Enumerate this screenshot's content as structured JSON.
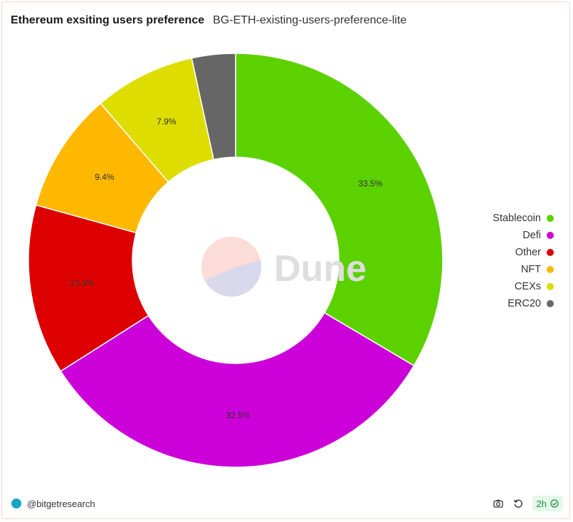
{
  "header": {
    "title": "Ethereum exsiting users preference",
    "subtitle": "BG-ETH-existing-users-preference-lite"
  },
  "chart_data": {
    "type": "pie",
    "donut": true,
    "categories": [
      "Stablecoin",
      "Defi",
      "Other",
      "NFT",
      "CEXs",
      "ERC20"
    ],
    "values": [
      33.5,
      32.5,
      13.3,
      9.4,
      7.9,
      3.4
    ],
    "labels": [
      "33.5%",
      "32.5%",
      "13.3%",
      "9.4%",
      "7.9%",
      ""
    ],
    "colors": [
      "#5cd100",
      "#cc00d8",
      "#dd0000",
      "#ffb800",
      "#dedd00",
      "#666666"
    ],
    "legend_position": "right"
  },
  "watermark": {
    "text": "Dune"
  },
  "footer": {
    "author": "@bitgetresearch",
    "refresh_badge": "2h"
  },
  "icons": {
    "camera": "camera-icon",
    "refresh": "refresh-icon",
    "check": "check-circle-icon"
  }
}
